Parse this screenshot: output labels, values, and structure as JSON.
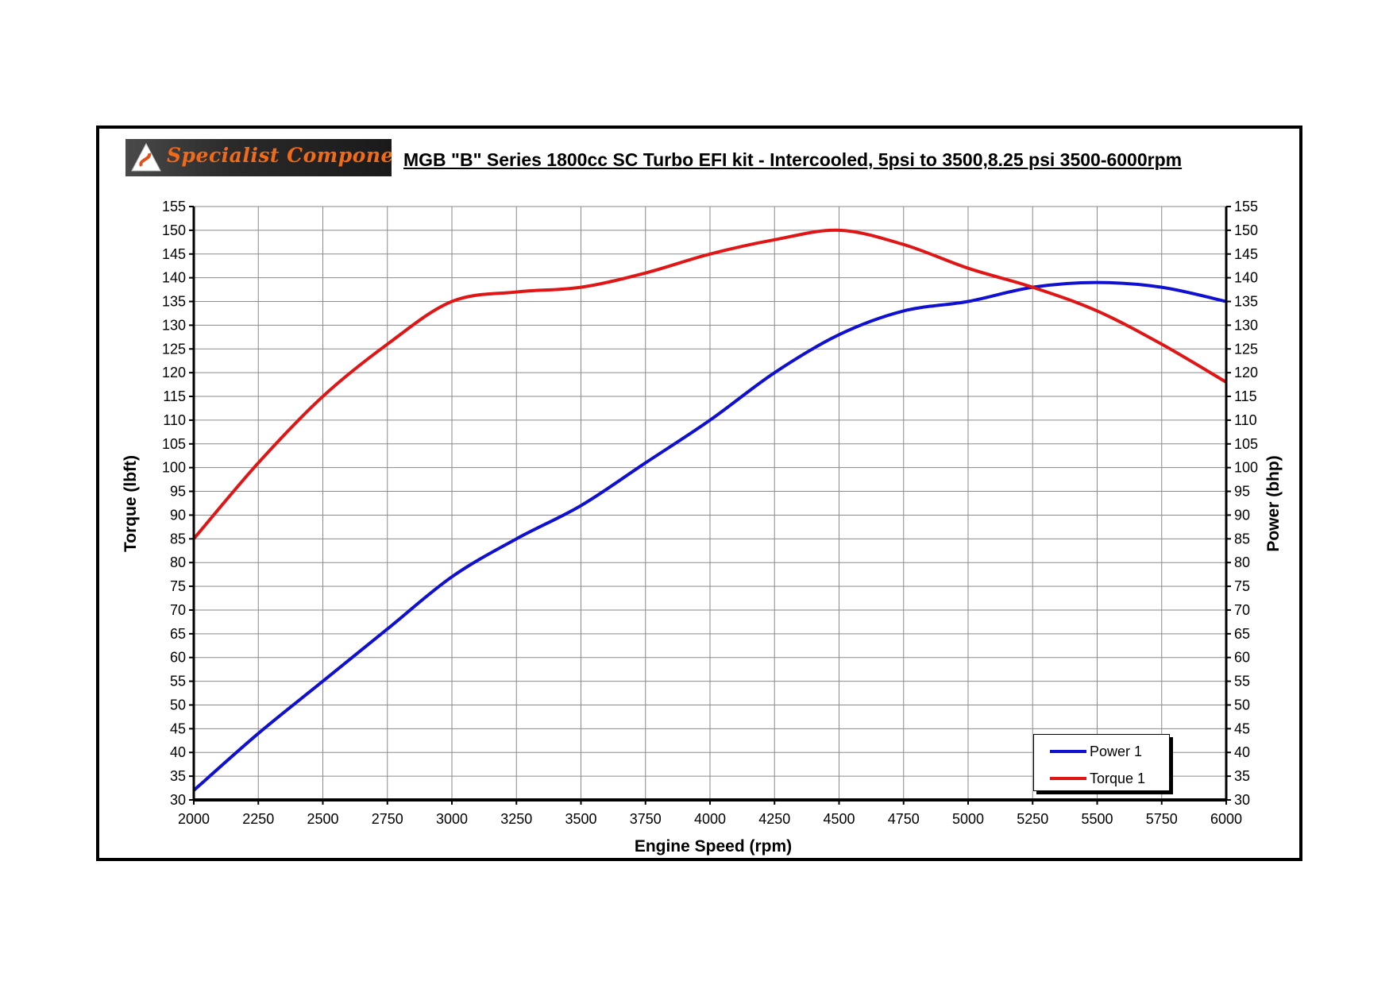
{
  "header": {
    "logo_text": "Specialist Components",
    "title": "MGB \"B\" Series 1800cc SC Turbo EFI kit - Intercooled, 5psi to 3500,8.25 psi 3500-6000rpm"
  },
  "chart_data": {
    "type": "line",
    "title": "MGB \"B\" Series 1800cc SC Turbo EFI kit - Intercooled, 5psi to 3500,8.25 psi 3500-6000rpm",
    "xlabel": "Engine Speed (rpm)",
    "ylabel": "Torque (lbft)",
    "y2label": "Power (bhp)",
    "xlim": [
      2000,
      6000
    ],
    "ylim": [
      30,
      155
    ],
    "y2lim": [
      30,
      155
    ],
    "x_ticks": [
      2000,
      2250,
      2500,
      2750,
      3000,
      3250,
      3500,
      3750,
      4000,
      4250,
      4500,
      4750,
      5000,
      5250,
      5500,
      5750,
      6000
    ],
    "y_ticks": [
      30,
      35,
      40,
      45,
      50,
      55,
      60,
      65,
      70,
      75,
      80,
      85,
      90,
      95,
      100,
      105,
      110,
      115,
      120,
      125,
      130,
      135,
      140,
      145,
      150,
      155
    ],
    "grid": true,
    "legend_position": "bottom-right",
    "series": [
      {
        "name": "Power 1",
        "color": "#1010d0",
        "x": [
          2000,
          2250,
          2500,
          2750,
          3000,
          3250,
          3500,
          3750,
          4000,
          4250,
          4500,
          4750,
          5000,
          5250,
          5500,
          5750,
          6000
        ],
        "values": [
          32,
          44,
          55,
          66,
          77,
          85,
          92,
          101,
          110,
          120,
          128,
          133,
          135,
          138,
          139,
          138,
          135
        ]
      },
      {
        "name": "Torque 1",
        "color": "#e01515",
        "x": [
          2000,
          2250,
          2500,
          2750,
          3000,
          3250,
          3500,
          3750,
          4000,
          4250,
          4500,
          4750,
          5000,
          5250,
          5500,
          5750,
          6000
        ],
        "values": [
          85,
          101,
          115,
          126,
          135,
          137,
          138,
          141,
          145,
          148,
          150,
          147,
          142,
          138,
          133,
          126,
          118
        ]
      }
    ]
  }
}
